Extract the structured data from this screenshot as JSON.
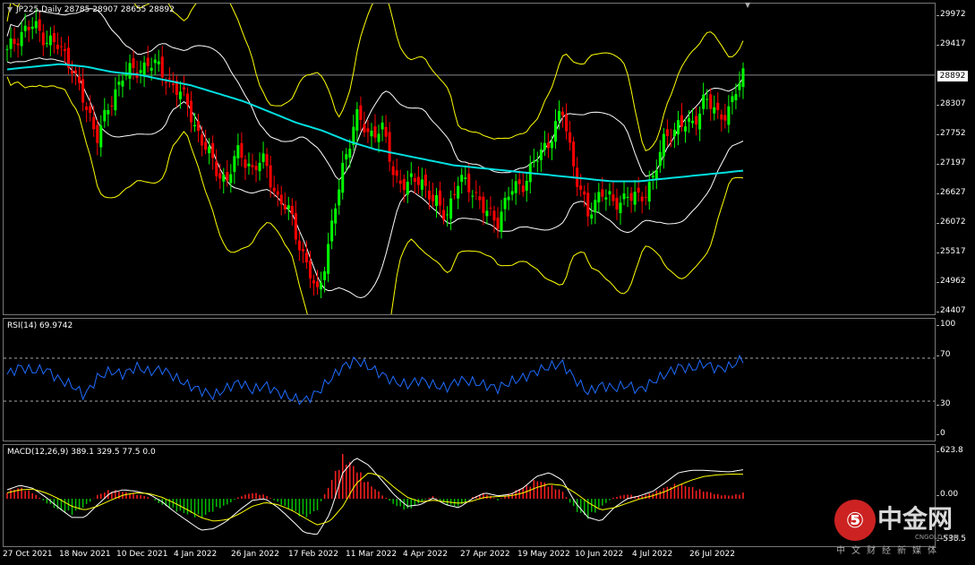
{
  "chart_header": {
    "title": "JP225,Daily  28785 28907 28655 28892",
    "rsi_label": "RSI(14) 69.9742",
    "macd_label": "MACD(12,26,9) 389.1 329.5 77.5 0.0"
  },
  "colors": {
    "bull": "#00ff00",
    "bear": "#ff0000",
    "ma": "#00e0e0",
    "bands_outer": "#ffff00",
    "bands_inner": "#ffffff",
    "rsi": "#1e6cff",
    "macd_hist_pos": "#ff2020",
    "macd_hist_neg": "#00c000",
    "macd_signal": "#ffff00",
    "macd_main": "#ffffff"
  },
  "price_axis": {
    "ticks": [
      "29972",
      "29417",
      "28892",
      "28307",
      "27752",
      "27197",
      "26627",
      "26072",
      "25517",
      "24962",
      "24407"
    ],
    "current": "28892"
  },
  "rsi_axis": {
    "ticks": [
      "100",
      "70",
      "30",
      "0"
    ]
  },
  "macd_axis": {
    "ticks": [
      "623.8",
      "0.00",
      "-538.5"
    ]
  },
  "dates": [
    "27 Oct 2021",
    "18 Nov 2021",
    "10 Dec 2021",
    "4 Jan 2022",
    "26 Jan 2022",
    "17 Feb 2022",
    "11 Mar 2022",
    "4 Apr 2022",
    "27 Apr 2022",
    "19 May 2022",
    "10 Jun 2022",
    "4 Jul 2022",
    "26 Jul 2022"
  ],
  "logo": {
    "symbol": "⑤",
    "name": "中金网",
    "url": "CNGOLD.COM",
    "tagline": "中文财经新媒体"
  },
  "chart_data": [
    {
      "type": "candlestick",
      "title": "JP225,Daily",
      "ohlc_last": {
        "open": 28785,
        "high": 28907,
        "low": 28655,
        "close": 28892
      },
      "ylim": [
        24407,
        30200
      ],
      "x": [
        "27 Oct 2021",
        "18 Nov 2021",
        "10 Dec 2021",
        "4 Jan 2022",
        "26 Jan 2022",
        "17 Feb 2022",
        "11 Mar 2022",
        "4 Apr 2022",
        "27 Apr 2022",
        "19 May 2022",
        "10 Jun 2022",
        "4 Jul 2022",
        "26 Jul 2022"
      ],
      "close_path": [
        29300,
        29700,
        29800,
        29600,
        29400,
        29100,
        28300,
        27800,
        28300,
        29000,
        28900,
        29200,
        28900,
        28700,
        28300,
        27700,
        27200,
        26900,
        27500,
        27100,
        27300,
        26500,
        26300,
        25400,
        24800,
        25800,
        27200,
        28100,
        27800,
        27900,
        27000,
        26800,
        27000,
        26500,
        26300,
        26900,
        26800,
        26300,
        26200,
        26700,
        26900,
        27300,
        27700,
        28200,
        27100,
        26200,
        26800,
        26400,
        26700,
        26500,
        27000,
        27700,
        28000,
        27900,
        28500,
        28100,
        28300,
        28892
      ],
      "ma_path": [
        29000,
        29050,
        29100,
        29050,
        28950,
        28900,
        28800,
        28700,
        28550,
        28400,
        28200,
        28000,
        27850,
        27650,
        27500,
        27400,
        27300,
        27200,
        27150,
        27100,
        27050,
        27000,
        26950,
        26900,
        26900,
        26950,
        27000,
        27050,
        27100
      ]
    },
    {
      "type": "line",
      "title": "RSI(14) 69.9742",
      "ylim": [
        0,
        100
      ],
      "levels": [
        30,
        70
      ],
      "values": [
        55,
        62,
        58,
        60,
        50,
        45,
        35,
        52,
        58,
        55,
        62,
        57,
        60,
        52,
        45,
        40,
        35,
        42,
        48,
        40,
        45,
        38,
        33,
        30,
        38,
        50,
        62,
        68,
        62,
        55,
        48,
        45,
        50,
        45,
        42,
        50,
        48,
        45,
        42,
        48,
        52,
        58,
        62,
        65,
        50,
        38,
        45,
        42,
        45,
        40,
        48,
        55,
        62,
        60,
        65,
        60,
        62,
        69.97
      ]
    },
    {
      "type": "bar",
      "title": "MACD(12,26,9) 389.1 329.5 77.5 0.0",
      "ylim": [
        -538.5,
        623.8
      ],
      "hist": [
        100,
        150,
        80,
        -50,
        -150,
        -200,
        -100,
        50,
        120,
        90,
        60,
        20,
        -80,
        -150,
        -200,
        -250,
        -150,
        -80,
        30,
        80,
        50,
        -50,
        -150,
        -250,
        -150,
        200,
        550,
        400,
        200,
        60,
        -80,
        -150,
        -50,
        40,
        -80,
        -100,
        20,
        80,
        -20,
        80,
        150,
        250,
        180,
        100,
        -150,
        -250,
        -100,
        20,
        60,
        30,
        80,
        150,
        200,
        150,
        100,
        60,
        40,
        77.5
      ],
      "signal": [
        80,
        120,
        130,
        80,
        0,
        -100,
        -150,
        -100,
        -20,
        50,
        80,
        70,
        20,
        -60,
        -150,
        -250,
        -300,
        -280,
        -200,
        -100,
        -50,
        -80,
        -150,
        -250,
        -350,
        -300,
        -100,
        200,
        350,
        300,
        150,
        20,
        -40,
        -20,
        -40,
        -60,
        -30,
        20,
        30,
        40,
        80,
        150,
        200,
        180,
        80,
        -50,
        -150,
        -120,
        -60,
        0,
        40,
        100,
        180,
        250,
        300,
        320,
        330,
        329.5
      ],
      "main": [
        120,
        180,
        140,
        20,
        -120,
        -250,
        -250,
        -80,
        80,
        120,
        100,
        60,
        -40,
        -180,
        -300,
        -420,
        -400,
        -300,
        -150,
        -20,
        0,
        -120,
        -280,
        -450,
        -480,
        -200,
        350,
        550,
        450,
        250,
        50,
        -100,
        -80,
        10,
        -80,
        -120,
        0,
        80,
        40,
        60,
        150,
        300,
        350,
        250,
        -50,
        -250,
        -300,
        -120,
        0,
        40,
        100,
        220,
        350,
        380,
        380,
        370,
        360,
        389.1
      ]
    }
  ]
}
